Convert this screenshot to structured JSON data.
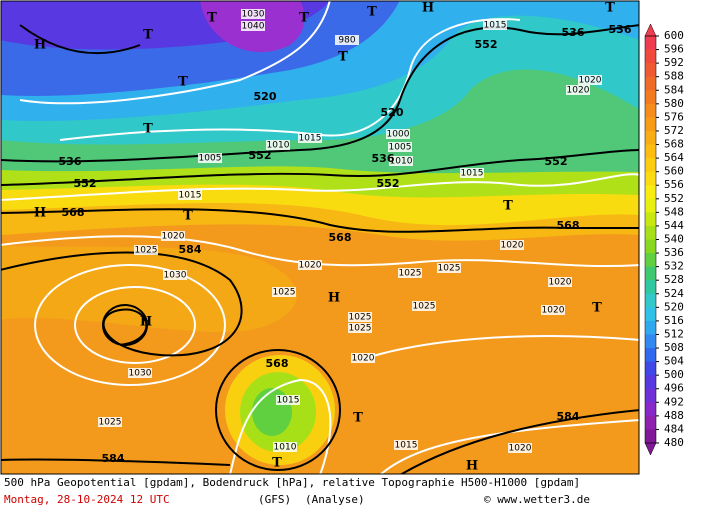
{
  "map": {
    "footer": {
      "description": "500 hPa Geopotential [gpdam], Bodendruck [hPa], relative Topographie H500-H1000 [gpdam]",
      "date": "Montag, 28-10-2024  12 UTC",
      "model": "(GFS)",
      "mode": "(Analyse)",
      "credit": "© www.wetter3.de"
    },
    "colorbar": {
      "levels": [
        600,
        596,
        592,
        588,
        584,
        580,
        576,
        572,
        568,
        564,
        560,
        556,
        552,
        548,
        544,
        540,
        536,
        532,
        528,
        524,
        520,
        516,
        512,
        508,
        504,
        500,
        496,
        492,
        488,
        484,
        480
      ],
      "colors": [
        "#f03c50",
        "#f04a3c",
        "#f05a32",
        "#f06a28",
        "#f47a20",
        "#f68c1c",
        "#f89c18",
        "#faac14",
        "#fcbc10",
        "#fccc10",
        "#fcdc10",
        "#f8ec10",
        "#e8f010",
        "#c8e810",
        "#a8e018",
        "#88d820",
        "#60d040",
        "#40c870",
        "#30c8a0",
        "#30c8c8",
        "#30c0e8",
        "#30a8f0",
        "#3088f0",
        "#3068f0",
        "#4048e8",
        "#5838e0",
        "#7030d8",
        "#8828c8",
        "#9020b0",
        "#801898"
      ]
    },
    "geopotential_labels": [
      "536",
      "552",
      "568",
      "584",
      "584",
      "568",
      "520",
      "520",
      "552",
      "536",
      "552",
      "568",
      "568",
      "552",
      "552",
      "536",
      "536",
      "584"
    ],
    "pressure_labels": [
      "1015",
      "1015",
      "1015",
      "1020",
      "1020",
      "1020",
      "1020",
      "1020",
      "1020",
      "1020",
      "1025",
      "1025",
      "1025",
      "1025",
      "1025",
      "1025",
      "1025",
      "1025",
      "1030",
      "1030",
      "1015",
      "1010",
      "1015",
      "1000",
      "1005",
      "1010",
      "1005",
      "1010",
      "1015",
      "980",
      "1040",
      "1030",
      "1020",
      "1020"
    ],
    "pressure_centers": [
      "H",
      "H",
      "H",
      "H",
      "H",
      "H",
      "T",
      "T",
      "T",
      "T",
      "T",
      "T",
      "T",
      "T",
      "T",
      "T",
      "T",
      "T",
      "T"
    ]
  }
}
